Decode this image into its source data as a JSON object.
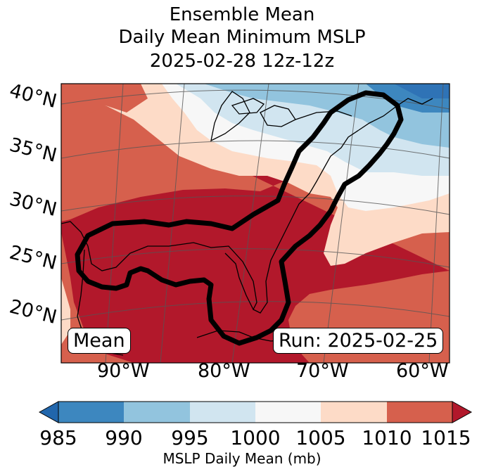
{
  "title": {
    "line1": "Ensemble Mean",
    "line2": "Daily Mean Minimum MSLP",
    "line3": "2025-02-28 12z-12z"
  },
  "map": {
    "lat_labels": [
      "40°N",
      "35°N",
      "30°N",
      "25°N",
      "20°N"
    ],
    "lon_labels": [
      "90°W",
      "80°W",
      "70°W",
      "60°W"
    ],
    "left_box": "Mean",
    "right_box": "Run: 2025-02-25",
    "contour_color": "#000000"
  },
  "colorbar": {
    "ticks": [
      "985",
      "990",
      "995",
      "1000",
      "1005",
      "1010",
      "1015"
    ],
    "colors": [
      "#2f73b6",
      "#3d87bf",
      "#92c4de",
      "#d1e5f0",
      "#f7f7f7",
      "#fddbc7",
      "#d6604d",
      "#b2182b"
    ],
    "label": "MSLP Daily Mean (mb)"
  }
}
